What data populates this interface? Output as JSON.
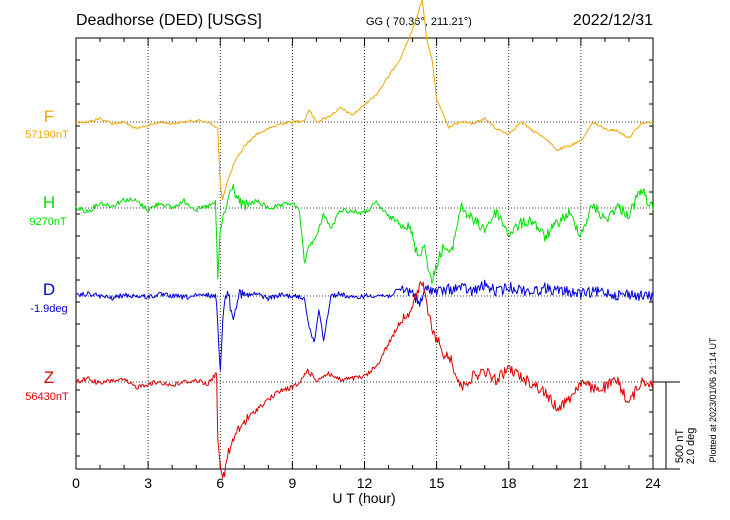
{
  "header": {
    "station": "Deadhorse (DED)  [USGS]",
    "coords": "GG ( 70.36°, 211.21°)",
    "date": "2022/12/31"
  },
  "footer": {
    "plotted": "Plotted at 2023/01/06 21:14 UT"
  },
  "scale": {
    "nt": "500 nT",
    "deg": "2.0 deg"
  },
  "colors": {
    "F": "#f0a800",
    "H": "#00e000",
    "D": "#0000e0",
    "Z": "#e00000",
    "axis": "#000000",
    "grid": "#000000"
  },
  "chart_data": {
    "type": "line",
    "xlabel": "U T (hour)",
    "xlim": [
      0,
      24
    ],
    "x_ticks": [
      "0",
      "3",
      "6",
      "9",
      "12",
      "15",
      "18",
      "21",
      "24"
    ],
    "y_units": "nT (500 nT per scale bar)",
    "series": [
      {
        "name": "F",
        "baseline_label": "57190nT",
        "baseline": 57190,
        "x": [
          0,
          0.5,
          1,
          1.5,
          2,
          2.5,
          3,
          3.5,
          4,
          4.5,
          5,
          5.5,
          5.9,
          6.0,
          6.1,
          6.3,
          6.6,
          7,
          7.5,
          8,
          8.5,
          9,
          9.5,
          9.7,
          10,
          10.5,
          11,
          11.5,
          12,
          12.5,
          13,
          13.5,
          14,
          14.2,
          14.4,
          14.6,
          14.8,
          15,
          15.5,
          16,
          16.5,
          17,
          17.5,
          18,
          18.5,
          19,
          19.5,
          20,
          20.5,
          21,
          21.5,
          22,
          22.5,
          23,
          23.5,
          24
        ],
        "values": [
          57190,
          57190,
          57210,
          57180,
          57190,
          57150,
          57170,
          57190,
          57180,
          57190,
          57200,
          57190,
          57150,
          56820,
          56750,
          56850,
          56960,
          57050,
          57120,
          57150,
          57180,
          57190,
          57200,
          57260,
          57190,
          57220,
          57270,
          57230,
          57290,
          57350,
          57450,
          57560,
          57720,
          57800,
          57900,
          57650,
          57560,
          57320,
          57160,
          57190,
          57180,
          57210,
          57150,
          57120,
          57190,
          57140,
          57100,
          57030,
          57050,
          57080,
          57190,
          57150,
          57140,
          57100,
          57180,
          57190
        ]
      },
      {
        "name": "H",
        "baseline_label": "9270nT",
        "baseline": 9270,
        "x": [
          0,
          0.5,
          1,
          1.5,
          2,
          2.5,
          3,
          3.5,
          4,
          4.5,
          5,
          5.5,
          5.8,
          5.9,
          6.0,
          6.2,
          6.5,
          6.8,
          7,
          7.5,
          8,
          8.5,
          9,
          9.3,
          9.5,
          9.7,
          10,
          10.3,
          10.6,
          11,
          11.5,
          12,
          12.5,
          13,
          13.3,
          13.6,
          13.9,
          14.2,
          14.5,
          14.8,
          15,
          15.3,
          15.6,
          16,
          16.5,
          17,
          17.5,
          18,
          18.5,
          19,
          19.5,
          20,
          20.5,
          21,
          21.5,
          22,
          22.5,
          23,
          23.5,
          24
        ],
        "values": [
          9270,
          9250,
          9300,
          9280,
          9320,
          9310,
          9260,
          9300,
          9270,
          9310,
          9260,
          9280,
          9300,
          8860,
          9150,
          9250,
          9400,
          9300,
          9280,
          9310,
          9270,
          9280,
          9300,
          9250,
          8950,
          9060,
          9100,
          9240,
          9150,
          9260,
          9250,
          9240,
          9300,
          9220,
          9200,
          9180,
          9150,
          9000,
          9050,
          8830,
          8950,
          9050,
          9000,
          9280,
          9200,
          9150,
          9250,
          9120,
          9180,
          9200,
          9100,
          9180,
          9240,
          9120,
          9290,
          9200,
          9280,
          9230,
          9380,
          9260
        ]
      },
      {
        "name": "D",
        "baseline_label": "-1.9deg",
        "baseline": -1.9,
        "x": [
          0,
          0.5,
          1,
          1.5,
          2,
          2.5,
          3,
          3.5,
          4,
          4.5,
          5,
          5.5,
          5.8,
          5.9,
          6.0,
          6.1,
          6.3,
          6.5,
          6.8,
          7,
          7.5,
          8,
          8.5,
          9,
          9.5,
          9.7,
          9.9,
          10.1,
          10.3,
          10.6,
          11,
          11.5,
          12,
          12.5,
          13,
          13.5,
          14,
          14.3,
          14.6,
          15,
          15.5,
          16,
          16.5,
          17,
          17.5,
          18,
          18.5,
          19,
          19.5,
          20,
          20.5,
          21,
          21.5,
          22,
          22.5,
          23,
          23.5,
          24
        ],
        "values": [
          -1.9,
          -1.85,
          -1.9,
          -1.95,
          -1.88,
          -1.9,
          -1.92,
          -1.87,
          -1.9,
          -1.93,
          -1.9,
          -1.88,
          -1.9,
          -2.5,
          -3.6,
          -2.4,
          -1.7,
          -2.4,
          -1.8,
          -1.9,
          -1.85,
          -1.95,
          -1.88,
          -1.9,
          -1.95,
          -2.6,
          -3.0,
          -2.2,
          -2.9,
          -1.9,
          -1.85,
          -1.95,
          -1.9,
          -1.88,
          -1.9,
          -1.75,
          -1.8,
          -2.1,
          -1.7,
          -1.8,
          -1.75,
          -1.7,
          -1.8,
          -1.65,
          -1.8,
          -1.7,
          -1.75,
          -1.8,
          -1.72,
          -1.78,
          -1.8,
          -1.85,
          -1.82,
          -1.8,
          -1.88,
          -1.85,
          -1.9,
          -1.92
        ]
      },
      {
        "name": "Z",
        "baseline_label": "56430nT",
        "baseline": 56430,
        "x": [
          0,
          0.5,
          1,
          1.5,
          2,
          2.5,
          3,
          3.5,
          4,
          4.5,
          5,
          5.5,
          5.85,
          5.9,
          6.0,
          6.1,
          6.3,
          6.6,
          7,
          7.5,
          8,
          8.5,
          9,
          9.3,
          9.6,
          9.8,
          10,
          10.5,
          11,
          11.5,
          12,
          12.5,
          13,
          13.5,
          14,
          14.2,
          14.4,
          14.6,
          14.8,
          15,
          15.3,
          15.6,
          16,
          16.5,
          17,
          17.5,
          18,
          18.5,
          19,
          19.5,
          20,
          20.5,
          21,
          21.5,
          22,
          22.5,
          23,
          23.5,
          24
        ],
        "values": [
          56430,
          56450,
          56420,
          56440,
          56440,
          56400,
          56420,
          56430,
          56410,
          56430,
          56440,
          56420,
          56480,
          56120,
          55970,
          55850,
          56000,
          56120,
          56200,
          56270,
          56330,
          56380,
          56400,
          56420,
          56500,
          56470,
          56440,
          56480,
          56440,
          56450,
          56460,
          56520,
          56650,
          56780,
          56860,
          56950,
          57000,
          56880,
          56720,
          56680,
          56590,
          56560,
          56400,
          56460,
          56490,
          56440,
          56510,
          56460,
          56420,
          56370,
          56280,
          56330,
          56430,
          56390,
          56400,
          56440,
          56310,
          56430,
          56430
        ]
      }
    ]
  }
}
